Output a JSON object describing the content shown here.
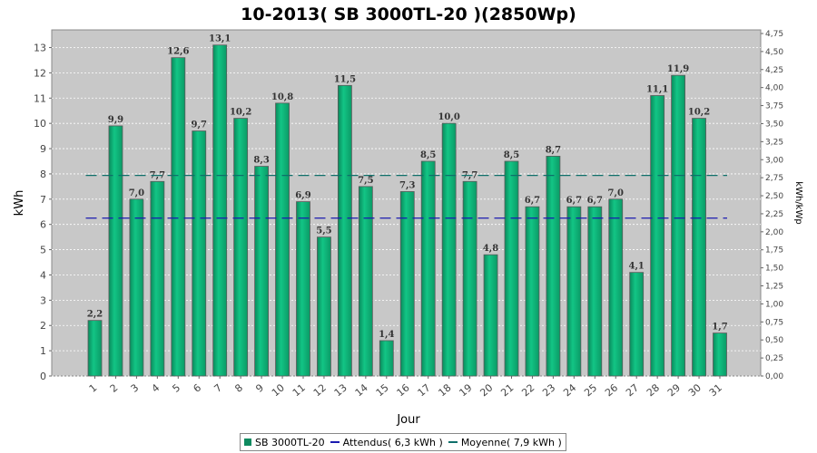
{
  "chart_data": {
    "type": "bar",
    "title": "10-2013( SB 3000TL-20 )(2850Wp)",
    "xlabel": "Jour",
    "ylabel": "kWh",
    "y2label": "kWh/kWp",
    "ylim": [
      0,
      13.7
    ],
    "y2lim": [
      0,
      4.8
    ],
    "yticks": [
      "0",
      "1",
      "2",
      "3",
      "4",
      "5",
      "6",
      "7",
      "8",
      "9",
      "10",
      "11",
      "12",
      "13"
    ],
    "y2ticks": [
      "0,00",
      "0,25",
      "0,50",
      "0,75",
      "1,00",
      "1,25",
      "1,50",
      "1,75",
      "2,00",
      "2,25",
      "2,50",
      "2,75",
      "3,00",
      "3,25",
      "3,50",
      "3,75",
      "4,00",
      "4,25",
      "4,50",
      "4,75"
    ],
    "categories": [
      "1",
      "2",
      "3",
      "4",
      "5",
      "6",
      "7",
      "8",
      "9",
      "10",
      "11",
      "12",
      "13",
      "14",
      "15",
      "16",
      "17",
      "18",
      "19",
      "20",
      "21",
      "22",
      "23",
      "24",
      "25",
      "26",
      "27",
      "28",
      "29",
      "30",
      "31"
    ],
    "series": [
      {
        "name": "SB 3000TL-20",
        "values": [
          2.2,
          9.9,
          7.0,
          7.7,
          12.6,
          9.7,
          13.1,
          10.2,
          8.3,
          10.8,
          6.9,
          5.5,
          11.5,
          7.5,
          1.4,
          7.3,
          8.5,
          10.0,
          7.7,
          4.8,
          8.5,
          6.7,
          8.7,
          6.7,
          6.7,
          7.0,
          4.1,
          11.1,
          11.9,
          10.2,
          1.7
        ],
        "labels": [
          "2,2",
          "9,9",
          "7,0",
          "7,7",
          "12,6",
          "9,7",
          "13,1",
          "10,2",
          "8,3",
          "10,8",
          "6,9",
          "5,5",
          "11,5",
          "7,5",
          "1,4",
          "7,3",
          "8,5",
          "10,0",
          "7,7",
          "4,8",
          "8,5",
          "6,7",
          "8,7",
          "6,7",
          "6,7",
          "7,0",
          "4,1",
          "11,1",
          "11,9",
          "10,2",
          "1,7"
        ],
        "color": "#10b27a"
      }
    ],
    "reference_lines": [
      {
        "name": "Attendus",
        "value": 6.25,
        "color": "#1a1ab0"
      },
      {
        "name": "Moyenne",
        "value": 7.94,
        "color": "#0e6f6a"
      }
    ],
    "grid": true,
    "legend_position": "bottom"
  },
  "legend": {
    "items": [
      {
        "label": "SB 3000TL-20",
        "color": "#0e8a5f",
        "kind": "box"
      },
      {
        "label": "Attendus( 6,3 kWh )",
        "color": "#1a1ab0",
        "kind": "line"
      },
      {
        "label": "Moyenne( 7,9 kWh )",
        "color": "#0e6f6a",
        "kind": "line"
      }
    ]
  },
  "colors": {
    "plot_background": "#c8c8c8",
    "bar": "#10b27a"
  }
}
